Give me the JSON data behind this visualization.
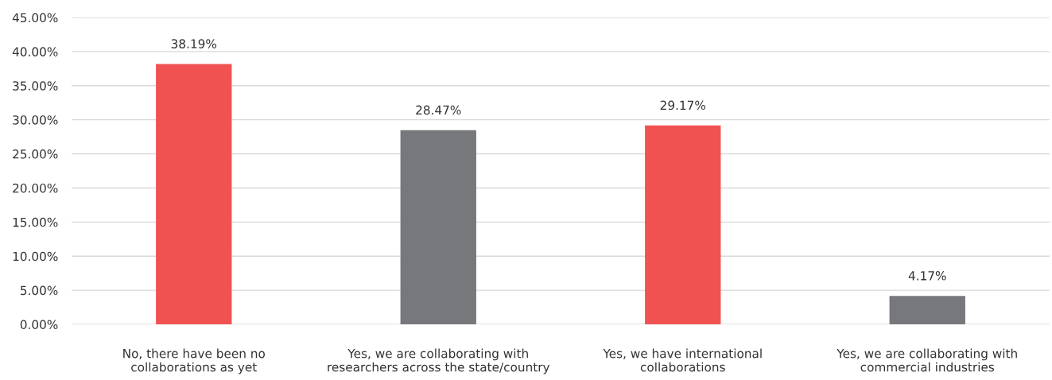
{
  "chart_data": {
    "type": "bar",
    "categories": [
      "No, there have been no\ncollaborations as yet",
      "Yes, we are collaborating with\nresearchers across the state/country",
      "Yes, we have international\ncollaborations",
      "Yes, we are collaborating with\ncommercial industries"
    ],
    "values": [
      38.19,
      28.47,
      29.17,
      4.17
    ],
    "colors": [
      "#f05252",
      "#77787b",
      "#f05252",
      "#77787b"
    ],
    "value_labels": [
      "38.19%",
      "28.47%",
      "29.17%",
      "4.17%"
    ],
    "ylim": [
      0,
      45
    ],
    "yticks": [
      {
        "value": 0,
        "label": "0.00%"
      },
      {
        "value": 5,
        "label": "5.00%"
      },
      {
        "value": 10,
        "label": "10.00%"
      },
      {
        "value": 15,
        "label": "15.00%"
      },
      {
        "value": 20,
        "label": "20.00%"
      },
      {
        "value": 25,
        "label": "25.00%"
      },
      {
        "value": 30,
        "label": "30.00%"
      },
      {
        "value": 35,
        "label": "35.00%"
      },
      {
        "value": 40,
        "label": "40.00%"
      },
      {
        "value": 45,
        "label": "45.00%"
      }
    ],
    "grid": "y"
  }
}
